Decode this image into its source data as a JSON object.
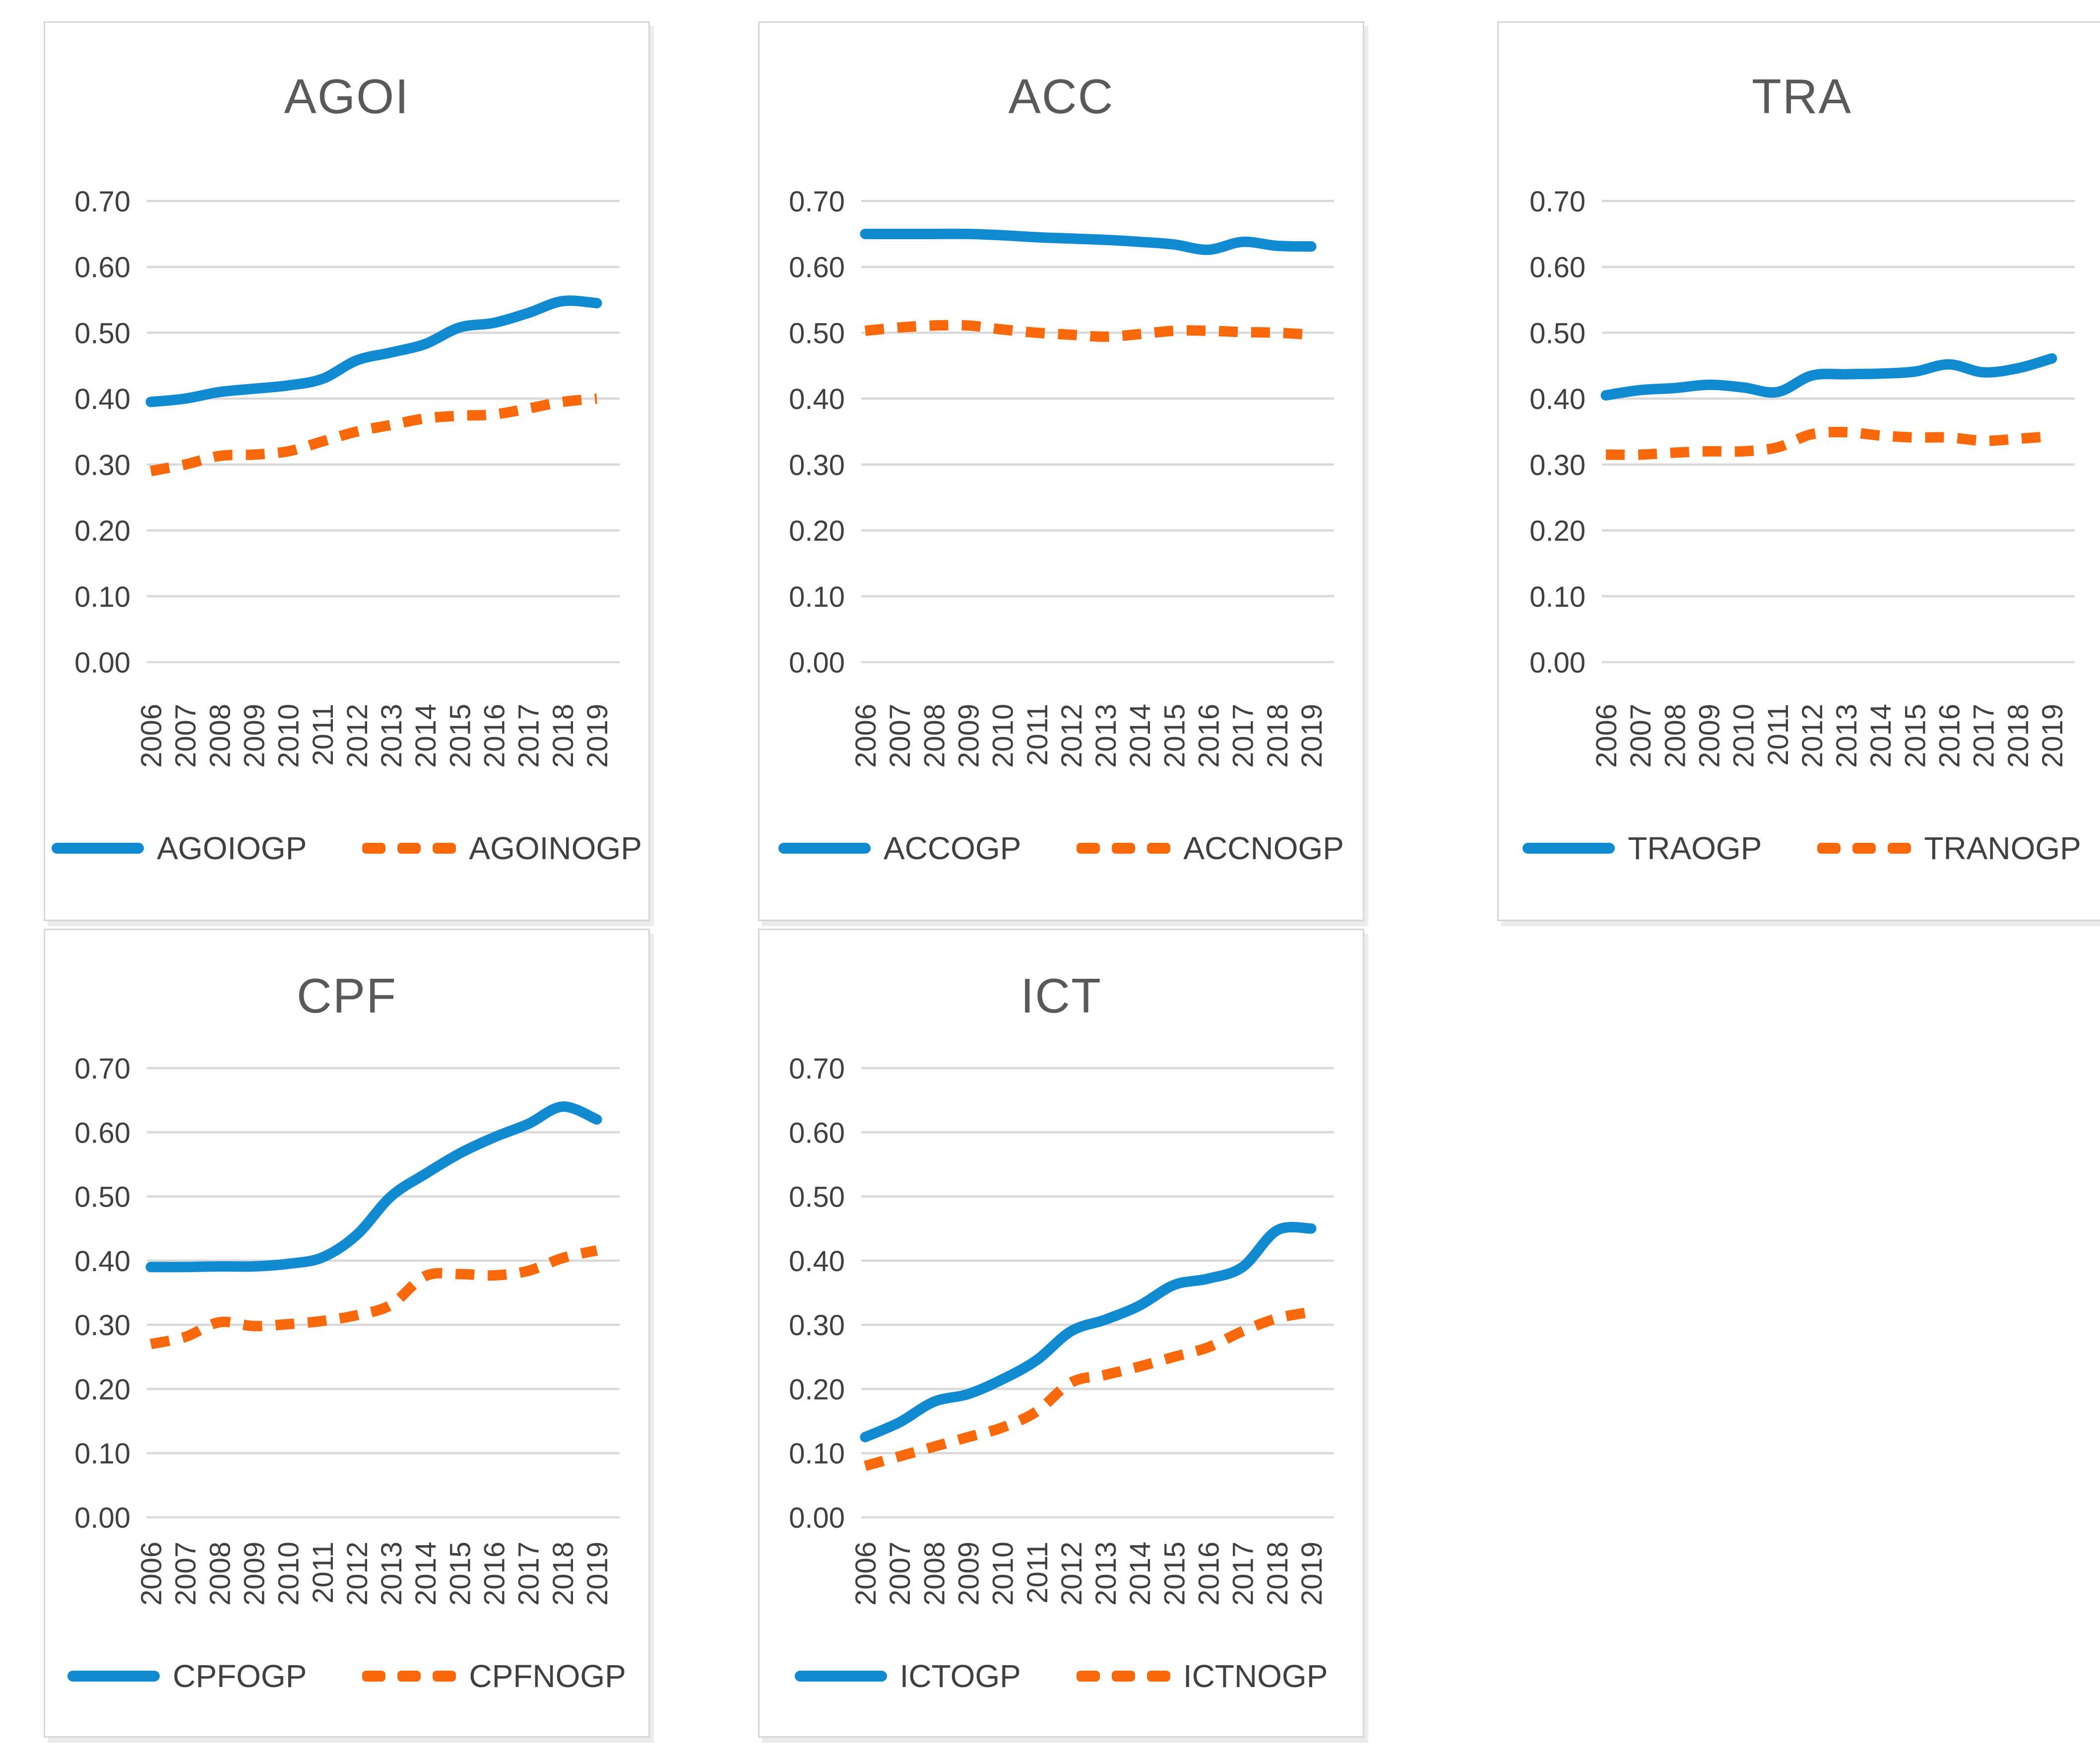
{
  "colors": {
    "series_solid": "#128AD2",
    "series_dashed": "#F8690B",
    "gridline": "#D9D9D9",
    "tick_text": "#404040",
    "title_text": "#595959",
    "card_border": "#D6D6D6"
  },
  "y_axis": {
    "min": 0.0,
    "max": 0.7,
    "step": 0.1,
    "tick_labels": [
      "0.00",
      "0.10",
      "0.20",
      "0.30",
      "0.40",
      "0.50",
      "0.60",
      "0.70"
    ]
  },
  "chart_data": [
    {
      "type": "line",
      "title": "AGOI",
      "categories": [
        "2006",
        "2007",
        "2008",
        "2009",
        "2010",
        "2011",
        "2012",
        "2013",
        "2014",
        "2015",
        "2016",
        "2017",
        "2018",
        "2019"
      ],
      "ylim": [
        0.0,
        0.7
      ],
      "grid": true,
      "legend_position": "bottom",
      "series": [
        {
          "name": "AGOIOGP",
          "style": "solid",
          "values": [
            0.395,
            0.4,
            0.41,
            0.415,
            0.42,
            0.43,
            0.458,
            0.47,
            0.483,
            0.508,
            0.515,
            0.53,
            0.548,
            0.545
          ]
        },
        {
          "name": "AGOINOGP",
          "style": "dashed",
          "values": [
            0.29,
            0.3,
            0.313,
            0.315,
            0.32,
            0.335,
            0.35,
            0.36,
            0.37,
            0.374,
            0.376,
            0.385,
            0.395,
            0.4
          ]
        }
      ]
    },
    {
      "type": "line",
      "title": "ACC",
      "categories": [
        "2006",
        "2007",
        "2008",
        "2009",
        "2010",
        "2011",
        "2012",
        "2013",
        "2014",
        "2015",
        "2016",
        "2017",
        "2018",
        "2019"
      ],
      "ylim": [
        0.0,
        0.7
      ],
      "grid": true,
      "legend_position": "bottom",
      "series": [
        {
          "name": "ACCOGP",
          "style": "solid",
          "values": [
            0.65,
            0.65,
            0.65,
            0.65,
            0.648,
            0.645,
            0.643,
            0.641,
            0.638,
            0.634,
            0.626,
            0.638,
            0.632,
            0.631
          ]
        },
        {
          "name": "ACCNOGP",
          "style": "dashed",
          "values": [
            0.503,
            0.508,
            0.511,
            0.511,
            0.505,
            0.5,
            0.497,
            0.494,
            0.498,
            0.503,
            0.503,
            0.501,
            0.5,
            0.497
          ]
        }
      ]
    },
    {
      "type": "line",
      "title": "TRA",
      "categories": [
        "2006",
        "2007",
        "2008",
        "2009",
        "2010",
        "2011",
        "2012",
        "2013",
        "2014",
        "2015",
        "2016",
        "2017",
        "2018",
        "2019"
      ],
      "ylim": [
        0.0,
        0.7
      ],
      "grid": true,
      "legend_position": "bottom",
      "series": [
        {
          "name": "TRAOGP",
          "style": "solid",
          "values": [
            0.405,
            0.413,
            0.416,
            0.421,
            0.417,
            0.41,
            0.435,
            0.437,
            0.438,
            0.441,
            0.452,
            0.44,
            0.446,
            0.461
          ]
        },
        {
          "name": "TRANOGP",
          "style": "dashed",
          "values": [
            0.315,
            0.315,
            0.318,
            0.32,
            0.32,
            0.326,
            0.346,
            0.349,
            0.344,
            0.341,
            0.341,
            0.336,
            0.339,
            0.343
          ]
        }
      ]
    },
    {
      "type": "line",
      "title": "CPF",
      "categories": [
        "2006",
        "2007",
        "2008",
        "2009",
        "2010",
        "2011",
        "2012",
        "2013",
        "2014",
        "2015",
        "2016",
        "2017",
        "2018",
        "2019"
      ],
      "ylim": [
        0.0,
        0.7
      ],
      "grid": true,
      "legend_position": "bottom",
      "series": [
        {
          "name": "CPFOGP",
          "style": "solid",
          "values": [
            0.39,
            0.39,
            0.391,
            0.391,
            0.395,
            0.405,
            0.44,
            0.5,
            0.535,
            0.567,
            0.592,
            0.613,
            0.64,
            0.62
          ]
        },
        {
          "name": "CPFNOGP",
          "style": "dashed",
          "values": [
            0.27,
            0.281,
            0.304,
            0.298,
            0.301,
            0.306,
            0.315,
            0.331,
            0.376,
            0.379,
            0.377,
            0.384,
            0.404,
            0.416
          ]
        }
      ]
    },
    {
      "type": "line",
      "title": "ICT",
      "categories": [
        "2006",
        "2007",
        "2008",
        "2009",
        "2010",
        "2011",
        "2012",
        "2013",
        "2014",
        "2015",
        "2016",
        "2017",
        "2018",
        "2019"
      ],
      "ylim": [
        0.0,
        0.7
      ],
      "grid": true,
      "legend_position": "bottom",
      "series": [
        {
          "name": "ICTOGP",
          "style": "solid",
          "values": [
            0.125,
            0.148,
            0.18,
            0.192,
            0.215,
            0.245,
            0.29,
            0.308,
            0.33,
            0.362,
            0.372,
            0.39,
            0.447,
            0.45
          ]
        },
        {
          "name": "ICTNOGP",
          "style": "dashed",
          "values": [
            0.08,
            0.095,
            0.11,
            0.125,
            0.14,
            0.165,
            0.21,
            0.222,
            0.235,
            0.25,
            0.265,
            0.29,
            0.31,
            0.32
          ]
        }
      ]
    }
  ]
}
